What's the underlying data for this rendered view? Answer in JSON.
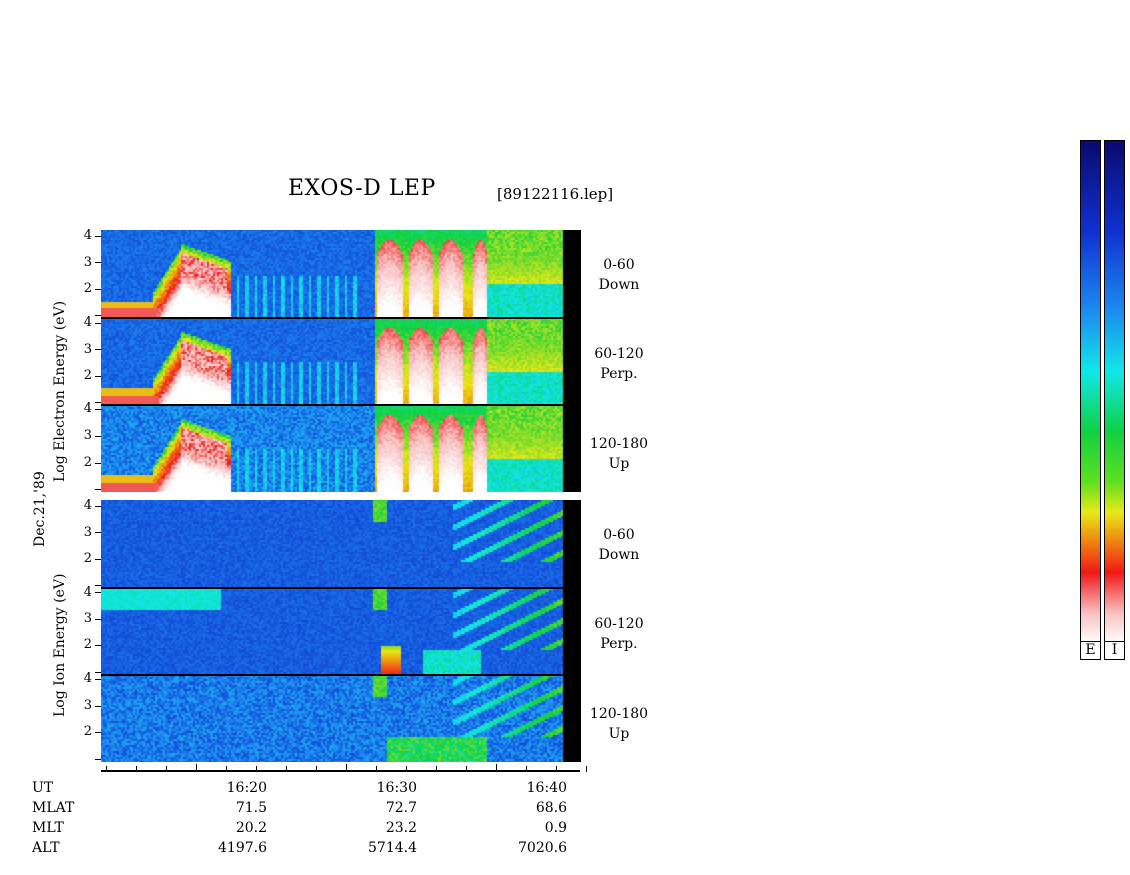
{
  "header": {
    "title": "EXOS-D LEP",
    "file": "[89122116.lep]"
  },
  "side_labels": {
    "date": "Dec.21,'89",
    "electron_axis": "Log   Electron   Energy (eV)",
    "ion_axis": "Log   Ion   Energy (eV)"
  },
  "panels": [
    {
      "species": "electron",
      "angle": "0-60",
      "direction": "Down"
    },
    {
      "species": "electron",
      "angle": "60-120",
      "direction": "Perp."
    },
    {
      "species": "electron",
      "angle": "120-180",
      "direction": "Up"
    },
    {
      "species": "ion",
      "angle": "0-60",
      "direction": "Down"
    },
    {
      "species": "ion",
      "angle": "60-120",
      "direction": "Perp."
    },
    {
      "species": "ion",
      "angle": "120-180",
      "direction": "Up"
    }
  ],
  "y_ticks": [
    "4",
    "3",
    "2"
  ],
  "y_ticks_bottom": [
    "4",
    "3",
    "2"
  ],
  "footer": {
    "rows": [
      {
        "label": "UT",
        "values": [
          "16:20",
          "16:30",
          "16:40"
        ]
      },
      {
        "label": "MLAT",
        "values": [
          "71.5",
          "72.7",
          "68.6"
        ]
      },
      {
        "label": "MLT",
        "values": [
          "20.2",
          "23.2",
          "0.9"
        ]
      },
      {
        "label": "ALT",
        "values": [
          "4197.6",
          "5714.4",
          "7020.6"
        ]
      }
    ]
  },
  "colorbars": [
    {
      "label": "E"
    },
    {
      "label": "I"
    }
  ],
  "chart_data": {
    "type": "heatmap",
    "title": "EXOS-D LEP",
    "x": {
      "label": "UT",
      "ticks": [
        "16:20",
        "16:30",
        "16:40"
      ],
      "range_minutes": [
        16.0,
        16.7
      ]
    },
    "y": {
      "label": "Log Energy (eV)",
      "range": [
        1,
        4.2
      ],
      "ticks": [
        2,
        3,
        4
      ]
    },
    "colormap": [
      "#0a0a70",
      "#1030d0",
      "#1c8cf0",
      "#10e8e8",
      "#10d040",
      "#e8e818",
      "#f08010",
      "#f01818",
      "#f8c0c0",
      "#ffffff"
    ],
    "panels": [
      {
        "species": "electron",
        "pitch_angle": "0-60",
        "direction": "Down"
      },
      {
        "species": "electron",
        "pitch_angle": "60-120",
        "direction": "Perp."
      },
      {
        "species": "electron",
        "pitch_angle": "120-180",
        "direction": "Up"
      },
      {
        "species": "ion",
        "pitch_angle": "0-60",
        "direction": "Down"
      },
      {
        "species": "ion",
        "pitch_angle": "60-120",
        "direction": "Perp."
      },
      {
        "species": "ion",
        "pitch_angle": "120-180",
        "direction": "Up"
      }
    ]
  }
}
